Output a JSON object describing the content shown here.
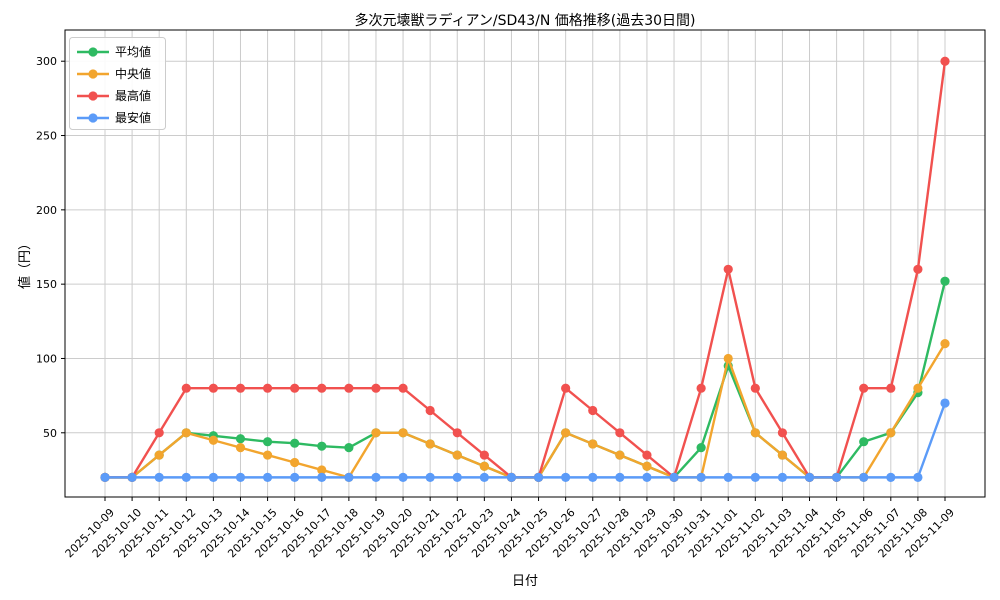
{
  "chart": {
    "title": "多次元壊獣ラディアン/SD43/N 価格推移(過去30日間)",
    "xlabel": "日付",
    "ylabel": "値（円）"
  },
  "chart_data": {
    "type": "line",
    "title": "多次元壊獣ラディアン/SD43/N 価格推移(過去30日間)",
    "xlabel": "日付",
    "ylabel": "値（円）",
    "grid": true,
    "legend_position": "upper left",
    "ylim": [
      6.8,
      321
    ],
    "yticks": [
      50,
      100,
      150,
      200,
      250,
      300
    ],
    "categories": [
      "2025-10-09",
      "2025-10-10",
      "2025-10-11",
      "2025-10-12",
      "2025-10-13",
      "2025-10-14",
      "2025-10-15",
      "2025-10-16",
      "2025-10-17",
      "2025-10-18",
      "2025-10-19",
      "2025-10-20",
      "2025-10-21",
      "2025-10-22",
      "2025-10-23",
      "2025-10-24",
      "2025-10-25",
      "2025-10-26",
      "2025-10-27",
      "2025-10-28",
      "2025-10-29",
      "2025-10-30",
      "2025-10-31",
      "2025-11-01",
      "2025-11-02",
      "2025-11-03",
      "2025-11-04",
      "2025-11-05",
      "2025-11-06",
      "2025-11-07",
      "2025-11-08",
      "2025-11-09"
    ],
    "series": [
      {
        "id": "average",
        "name": "平均値",
        "color": "#2eba62",
        "values": [
          20,
          20,
          35,
          50,
          48,
          46,
          44,
          43,
          41,
          40,
          50,
          50,
          42.5,
          35,
          27.5,
          20,
          20,
          50,
          42.5,
          35,
          27.5,
          20,
          40,
          95,
          50,
          35,
          20,
          20,
          44,
          50,
          77,
          152
        ]
      },
      {
        "id": "median",
        "name": "中央値",
        "color": "#f2a52e",
        "values": [
          20,
          20,
          35,
          50,
          45,
          40,
          35,
          30,
          25,
          20,
          50,
          50,
          42.5,
          35,
          27.5,
          20,
          20,
          50,
          42.5,
          35,
          27.5,
          20,
          20,
          100,
          50,
          35,
          20,
          20,
          20,
          50,
          80,
          110
        ]
      },
      {
        "id": "max",
        "name": "最高値",
        "color": "#f1514f",
        "values": [
          20,
          20,
          50,
          80,
          80,
          80,
          80,
          80,
          80,
          80,
          80,
          80,
          65,
          50,
          35,
          20,
          20,
          80,
          65,
          50,
          35,
          20,
          80,
          160,
          80,
          50,
          20,
          20,
          80,
          80,
          160,
          300
        ]
      },
      {
        "id": "min",
        "name": "最安値",
        "color": "#5b9bf8",
        "values": [
          20,
          20,
          20,
          20,
          20,
          20,
          20,
          20,
          20,
          20,
          20,
          20,
          20,
          20,
          20,
          20,
          20,
          20,
          20,
          20,
          20,
          20,
          20,
          20,
          20,
          20,
          20,
          20,
          20,
          20,
          20,
          70
        ]
      }
    ],
    "styles": {
      "grid_color": "#cccccc",
      "spine_color": "#000000",
      "tick_label_color": "#000000",
      "marker_radius": 4.6,
      "line_width": 2.4
    }
  }
}
